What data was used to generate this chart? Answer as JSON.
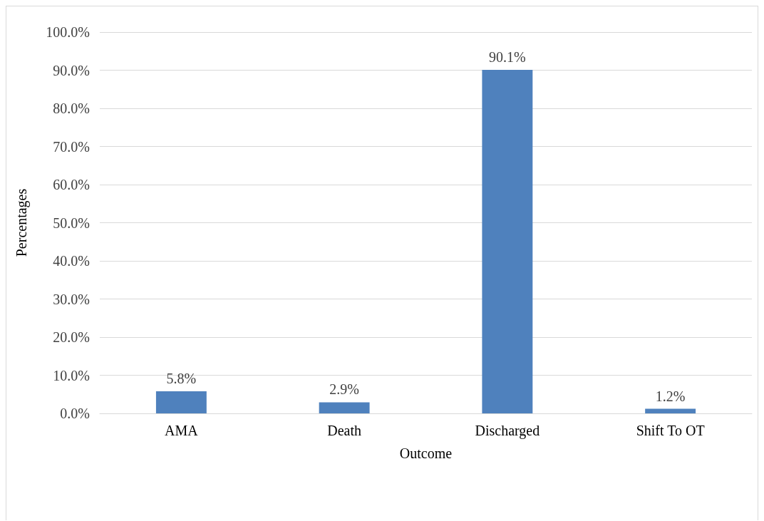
{
  "chart_data": {
    "type": "bar",
    "xlabel": "Outcome",
    "ylabel": "Percentages",
    "categories": [
      "AMA",
      "Death",
      "Discharged",
      "Shift To OT"
    ],
    "values": [
      5.8,
      2.9,
      90.1,
      1.2
    ],
    "color": "#4f81bd",
    "value_labels": [
      "5.8%",
      "2.9%",
      "90.1%",
      "1.2%"
    ],
    "ylim": [
      0,
      100
    ],
    "yticks": [
      {
        "value": 0,
        "label": "0.0%"
      },
      {
        "value": 10,
        "label": "10.0%"
      },
      {
        "value": 20,
        "label": "20.0%"
      },
      {
        "value": 30,
        "label": "30.0%"
      },
      {
        "value": 40,
        "label": "40.0%"
      },
      {
        "value": 50,
        "label": "50.0%"
      },
      {
        "value": 60,
        "label": "60.0%"
      },
      {
        "value": 70,
        "label": "70.0%"
      },
      {
        "value": 80,
        "label": "80.0%"
      },
      {
        "value": 90,
        "label": "90.0%"
      },
      {
        "value": 100,
        "label": "100.0%"
      }
    ],
    "grid": "y"
  }
}
